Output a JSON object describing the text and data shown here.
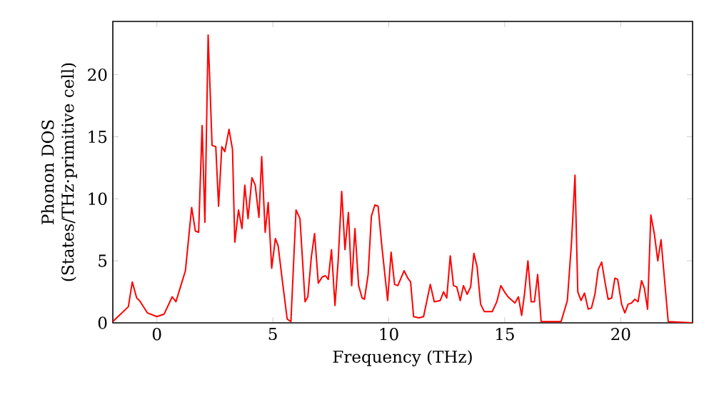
{
  "chart_data": {
    "type": "line",
    "xlabel": "Frequency (THz)",
    "ylabel": "Phonon DOS (States/THz·primitive cell)",
    "xlim": [
      -1.9,
      23.1
    ],
    "ylim": [
      0,
      24.3
    ],
    "xticks": [
      0,
      5,
      10,
      15,
      20
    ],
    "yticks": [
      0,
      5,
      10,
      15,
      20
    ],
    "marker": "none",
    "line_style": "solid",
    "series": [
      {
        "color": "#ff0000",
        "x": [
          -1.9,
          -1.23,
          -1.06,
          -0.87,
          -0.75,
          -0.41,
          0,
          0.31,
          0.66,
          0.82,
          1.23,
          1.5,
          1.66,
          1.8,
          1.95,
          2.07,
          2.21,
          2.38,
          2.54,
          2.66,
          2.8,
          2.93,
          3.11,
          3.26,
          3.36,
          3.52,
          3.67,
          3.79,
          3.93,
          4.1,
          4.24,
          4.4,
          4.52,
          4.67,
          4.8,
          4.95,
          5.11,
          5.23,
          5.41,
          5.62,
          5.78,
          6.0,
          6.17,
          6.39,
          6.51,
          6.66,
          6.8,
          6.96,
          7.13,
          7.27,
          7.39,
          7.53,
          7.68,
          7.82,
          7.97,
          8.11,
          8.26,
          8.4,
          8.54,
          8.7,
          8.85,
          8.95,
          9.11,
          9.25,
          9.4,
          9.54,
          9.7,
          9.95,
          10.1,
          10.25,
          10.39,
          10.66,
          10.82,
          10.94,
          11.07,
          11.3,
          11.5,
          11.79,
          11.96,
          12.22,
          12.36,
          12.5,
          12.65,
          12.79,
          12.93,
          13.08,
          13.22,
          13.38,
          13.53,
          13.67,
          13.81,
          13.96,
          14.12,
          14.46,
          14.66,
          14.83,
          14.99,
          15.14,
          15.32,
          15.44,
          15.59,
          15.73,
          15.85,
          16.0,
          16.14,
          16.28,
          16.42,
          16.57,
          17.43,
          17.7,
          17.88,
          18.03,
          18.15,
          18.29,
          18.44,
          18.6,
          18.74,
          18.89,
          19.03,
          19.18,
          19.34,
          19.46,
          19.61,
          19.75,
          19.87,
          20.04,
          20.18,
          20.32,
          20.47,
          20.61,
          20.75,
          20.9,
          21.02,
          21.16,
          21.3,
          21.45,
          21.6,
          21.74,
          22.05,
          23.1
        ],
        "values": [
          0.1,
          1.3,
          3.3,
          2.0,
          1.8,
          0.8,
          0.5,
          0.7,
          2.1,
          1.7,
          4.2,
          9.3,
          7.4,
          7.3,
          15.9,
          8.1,
          23.2,
          14.3,
          14.2,
          9.4,
          14.2,
          13.8,
          15.6,
          14.0,
          6.5,
          9.1,
          7.6,
          11.1,
          8.4,
          11.7,
          11.1,
          8.5,
          13.4,
          7.3,
          9.7,
          4.4,
          6.8,
          6.2,
          3.4,
          0.3,
          0.1,
          9.1,
          8.4,
          1.7,
          2.1,
          5.3,
          7.2,
          3.2,
          3.7,
          3.8,
          3.5,
          5.9,
          1.4,
          5.1,
          10.6,
          5.9,
          8.9,
          3.0,
          7.6,
          3.0,
          2.0,
          1.9,
          3.9,
          8.6,
          9.5,
          9.4,
          6.2,
          1.8,
          5.7,
          3.1,
          3.0,
          4.2,
          3.6,
          3.3,
          0.5,
          0.4,
          0.5,
          3.1,
          1.7,
          1.8,
          2.5,
          2.0,
          5.4,
          3.0,
          2.9,
          1.8,
          3.0,
          2.3,
          2.9,
          5.6,
          4.5,
          1.5,
          0.9,
          0.9,
          1.7,
          3.0,
          2.5,
          2.1,
          1.8,
          1.6,
          2.1,
          0.6,
          2.3,
          5.0,
          1.7,
          1.7,
          3.9,
          0.1,
          0.1,
          1.8,
          6.5,
          11.9,
          2.5,
          1.8,
          2.4,
          1.1,
          1.2,
          2.3,
          4.3,
          4.9,
          3.1,
          1.9,
          2.0,
          3.6,
          3.5,
          1.5,
          0.8,
          1.5,
          1.6,
          1.9,
          1.7,
          3.4,
          2.8,
          1.1,
          8.7,
          7.2,
          5.0,
          6.7,
          0.1,
          0.0
        ]
      }
    ]
  }
}
